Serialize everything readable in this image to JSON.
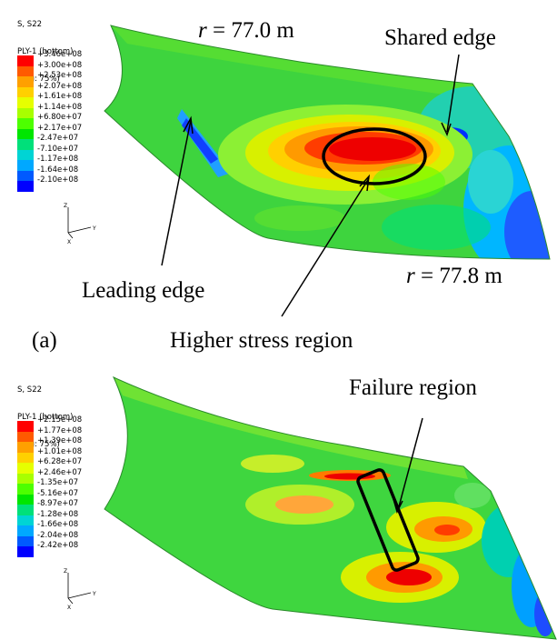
{
  "panel_a": {
    "label": "(a)",
    "legend_header": [
      "S, S22",
      "PLY-1 (bottom)",
      "(Avg: 75%)"
    ],
    "legend_values": [
      "+3.46e+08",
      "+3.00e+08",
      "+2.53e+08",
      "+2.07e+08",
      "+1.61e+08",
      "+1.14e+08",
      "+6.80e+07",
      "+2.17e+07",
      "-2.47e+07",
      "-7.10e+07",
      "-1.17e+08",
      "-1.64e+08",
      "-2.10e+08"
    ],
    "annotations": {
      "r_top_var": "r",
      "r_top_rest": " = 77.0 m",
      "shared_edge": "Shared edge",
      "r_bottom_var": "r",
      "r_bottom_rest": " = 77.8 m",
      "leading_edge": "Leading edge",
      "higher_stress": "Higher stress region"
    },
    "triad": {
      "z": "Z",
      "y": "Y",
      "x": "X"
    }
  },
  "panel_b": {
    "legend_header": [
      "S, S22",
      "PLY-1 (bottom)",
      "(Avg: 75%)"
    ],
    "legend_values": [
      "+2.15e+08",
      "+1.77e+08",
      "+1.39e+08",
      "+1.01e+08",
      "+6.28e+07",
      "+2.46e+07",
      "-1.35e+07",
      "-5.16e+07",
      "-8.97e+07",
      "-1.28e+08",
      "-1.66e+08",
      "-2.04e+08",
      "-2.42e+08"
    ],
    "annotations": {
      "failure_region": "Failure region"
    },
    "triad": {
      "z": "Z",
      "y": "Y",
      "x": "X"
    }
  },
  "legend_colors": [
    "#ff0000",
    "#ff5a00",
    "#ffa000",
    "#ffd000",
    "#e6ff00",
    "#a8ff00",
    "#4dff00",
    "#00e600",
    "#00e07a",
    "#00d4d4",
    "#00a8ff",
    "#005aff",
    "#0000ff"
  ]
}
